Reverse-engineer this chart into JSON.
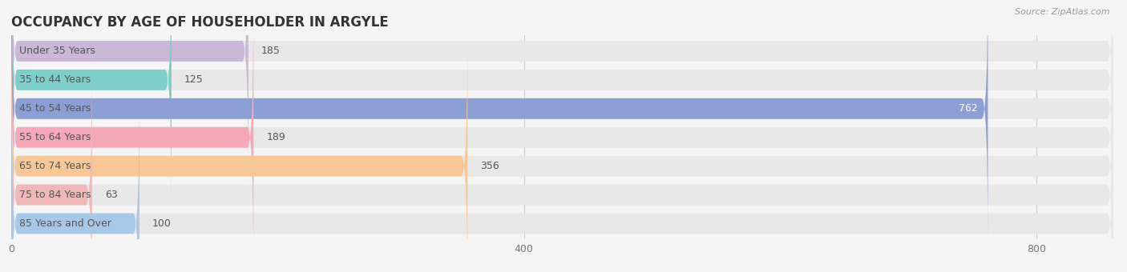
{
  "title": "OCCUPANCY BY AGE OF HOUSEHOLDER IN ARGYLE",
  "source": "Source: ZipAtlas.com",
  "categories": [
    "Under 35 Years",
    "35 to 44 Years",
    "45 to 54 Years",
    "55 to 64 Years",
    "65 to 74 Years",
    "75 to 84 Years",
    "85 Years and Over"
  ],
  "values": [
    185,
    125,
    762,
    189,
    356,
    63,
    100
  ],
  "bar_colors": [
    "#c9b8d8",
    "#7ecfca",
    "#8b9fd4",
    "#f4a8b8",
    "#f7c896",
    "#f0b8b8",
    "#a8c8e8"
  ],
  "xlim_max": 860,
  "background_color": "#f5f5f5",
  "bar_bg_color": "#e8e8e8",
  "title_fontsize": 12,
  "label_fontsize": 9,
  "value_fontsize": 9,
  "xticks": [
    0,
    400,
    800
  ],
  "bar_height": 0.72,
  "rounding_size": 5
}
